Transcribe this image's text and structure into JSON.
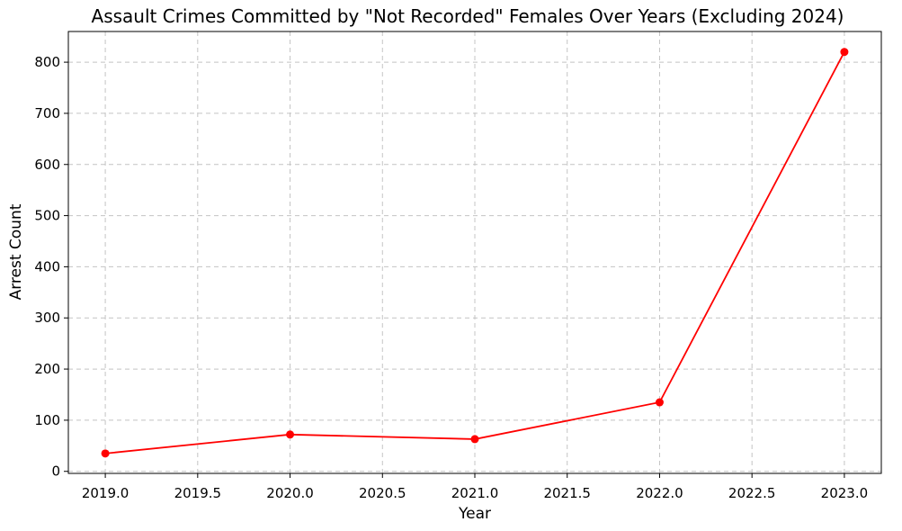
{
  "chart_data": {
    "type": "line",
    "title": "Assault Crimes Committed by \"Not Recorded\" Females Over Years (Excluding 2024)",
    "xlabel": "Year",
    "ylabel": "Arrest Count",
    "xlim": [
      2018.8,
      2023.2
    ],
    "ylim": [
      -4,
      860
    ],
    "x_ticks": [
      2019.0,
      2019.5,
      2020.0,
      2020.5,
      2021.0,
      2021.5,
      2022.0,
      2022.5,
      2023.0
    ],
    "x_tick_labels": [
      "2019.0",
      "2019.5",
      "2020.0",
      "2020.5",
      "2021.0",
      "2021.5",
      "2022.0",
      "2022.5",
      "2023.0"
    ],
    "y_ticks": [
      0,
      100,
      200,
      300,
      400,
      500,
      600,
      700,
      800
    ],
    "y_tick_labels": [
      "0",
      "100",
      "200",
      "300",
      "400",
      "500",
      "600",
      "700",
      "800"
    ],
    "grid": true,
    "series": [
      {
        "color": "#ff0000",
        "marker": "circle",
        "x": [
          2019,
          2020,
          2021,
          2022,
          2023
        ],
        "y": [
          35,
          72,
          63,
          135,
          820
        ]
      }
    ]
  }
}
